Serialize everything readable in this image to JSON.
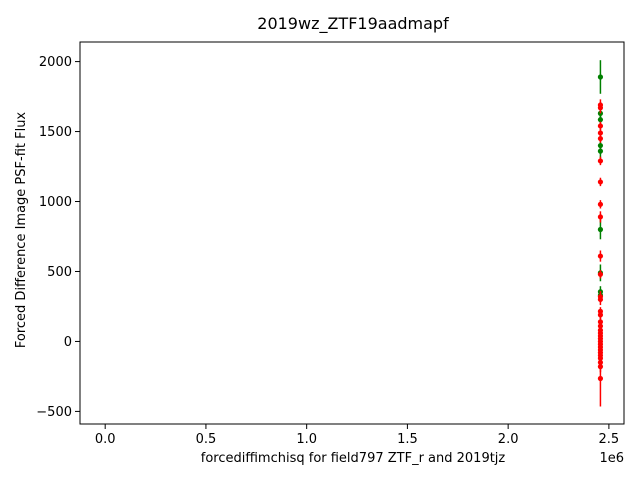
{
  "chart_data": {
    "type": "scatter",
    "title": "2019wz_ZTF19aadmapf",
    "xlabel": "forcediffimchisq for field797 ZTF_r and 2019tjz",
    "ylabel": "Forced Difference Image PSF-fit Flux",
    "x_offset_label": "1e6",
    "xlim": [
      -0.125,
      2.575
    ],
    "ylim": [
      -590,
      2140
    ],
    "x_ticks": [
      0.0,
      0.5,
      1.0,
      1.5,
      2.0,
      2.5
    ],
    "x_tick_labels": [
      "0.0",
      "0.5",
      "1.0",
      "1.5",
      "2.0",
      "2.5"
    ],
    "y_ticks": [
      -500,
      0,
      500,
      1000,
      1500,
      2000
    ],
    "y_tick_labels": [
      "−500",
      "0",
      "500",
      "1000",
      "1500",
      "2000"
    ],
    "grid": false,
    "series": [
      {
        "color": "#008000",
        "points": [
          {
            "x": 2.458,
            "y": 1890,
            "err": 120
          },
          {
            "x": 2.458,
            "y": 1630,
            "err": 50
          },
          {
            "x": 2.458,
            "y": 1585,
            "err": 50
          },
          {
            "x": 2.458,
            "y": 1400,
            "err": 50
          },
          {
            "x": 2.458,
            "y": 1360,
            "err": 50
          },
          {
            "x": 2.458,
            "y": 800,
            "err": 70
          },
          {
            "x": 2.458,
            "y": 490,
            "err": 60
          },
          {
            "x": 2.458,
            "y": 355,
            "err": 40
          },
          {
            "x": 2.458,
            "y": 330,
            "err": 40
          }
        ]
      },
      {
        "color": "#ff0000",
        "points": [
          {
            "x": 2.458,
            "y": 1690,
            "err": 40
          },
          {
            "x": 2.458,
            "y": 1670,
            "err": 40
          },
          {
            "x": 2.458,
            "y": 1540,
            "err": 30
          },
          {
            "x": 2.458,
            "y": 1490,
            "err": 30
          },
          {
            "x": 2.458,
            "y": 1450,
            "err": 30
          },
          {
            "x": 2.458,
            "y": 1290,
            "err": 30
          },
          {
            "x": 2.458,
            "y": 1140,
            "err": 30
          },
          {
            "x": 2.458,
            "y": 980,
            "err": 30
          },
          {
            "x": 2.458,
            "y": 890,
            "err": 40
          },
          {
            "x": 2.458,
            "y": 610,
            "err": 40
          },
          {
            "x": 2.458,
            "y": 480,
            "err": 30
          },
          {
            "x": 2.458,
            "y": 320,
            "err": 40
          },
          {
            "x": 2.458,
            "y": 300,
            "err": 40
          },
          {
            "x": 2.458,
            "y": 215,
            "err": 30
          },
          {
            "x": 2.458,
            "y": 190,
            "err": 30
          },
          {
            "x": 2.458,
            "y": 140,
            "err": 30
          },
          {
            "x": 2.458,
            "y": 110,
            "err": 30
          },
          {
            "x": 2.458,
            "y": 80,
            "err": 30
          },
          {
            "x": 2.458,
            "y": 60,
            "err": 30
          },
          {
            "x": 2.458,
            "y": 40,
            "err": 30
          },
          {
            "x": 2.458,
            "y": 20,
            "err": 30
          },
          {
            "x": 2.458,
            "y": 0,
            "err": 30
          },
          {
            "x": 2.458,
            "y": -20,
            "err": 30
          },
          {
            "x": 2.458,
            "y": -40,
            "err": 30
          },
          {
            "x": 2.458,
            "y": -60,
            "err": 30
          },
          {
            "x": 2.458,
            "y": -80,
            "err": 30
          },
          {
            "x": 2.458,
            "y": -100,
            "err": 30
          },
          {
            "x": 2.458,
            "y": -120,
            "err": 30
          },
          {
            "x": 2.458,
            "y": -150,
            "err": 30
          },
          {
            "x": 2.458,
            "y": -180,
            "err": 40
          },
          {
            "x": 2.458,
            "y": -265,
            "err": 200
          }
        ]
      }
    ]
  }
}
